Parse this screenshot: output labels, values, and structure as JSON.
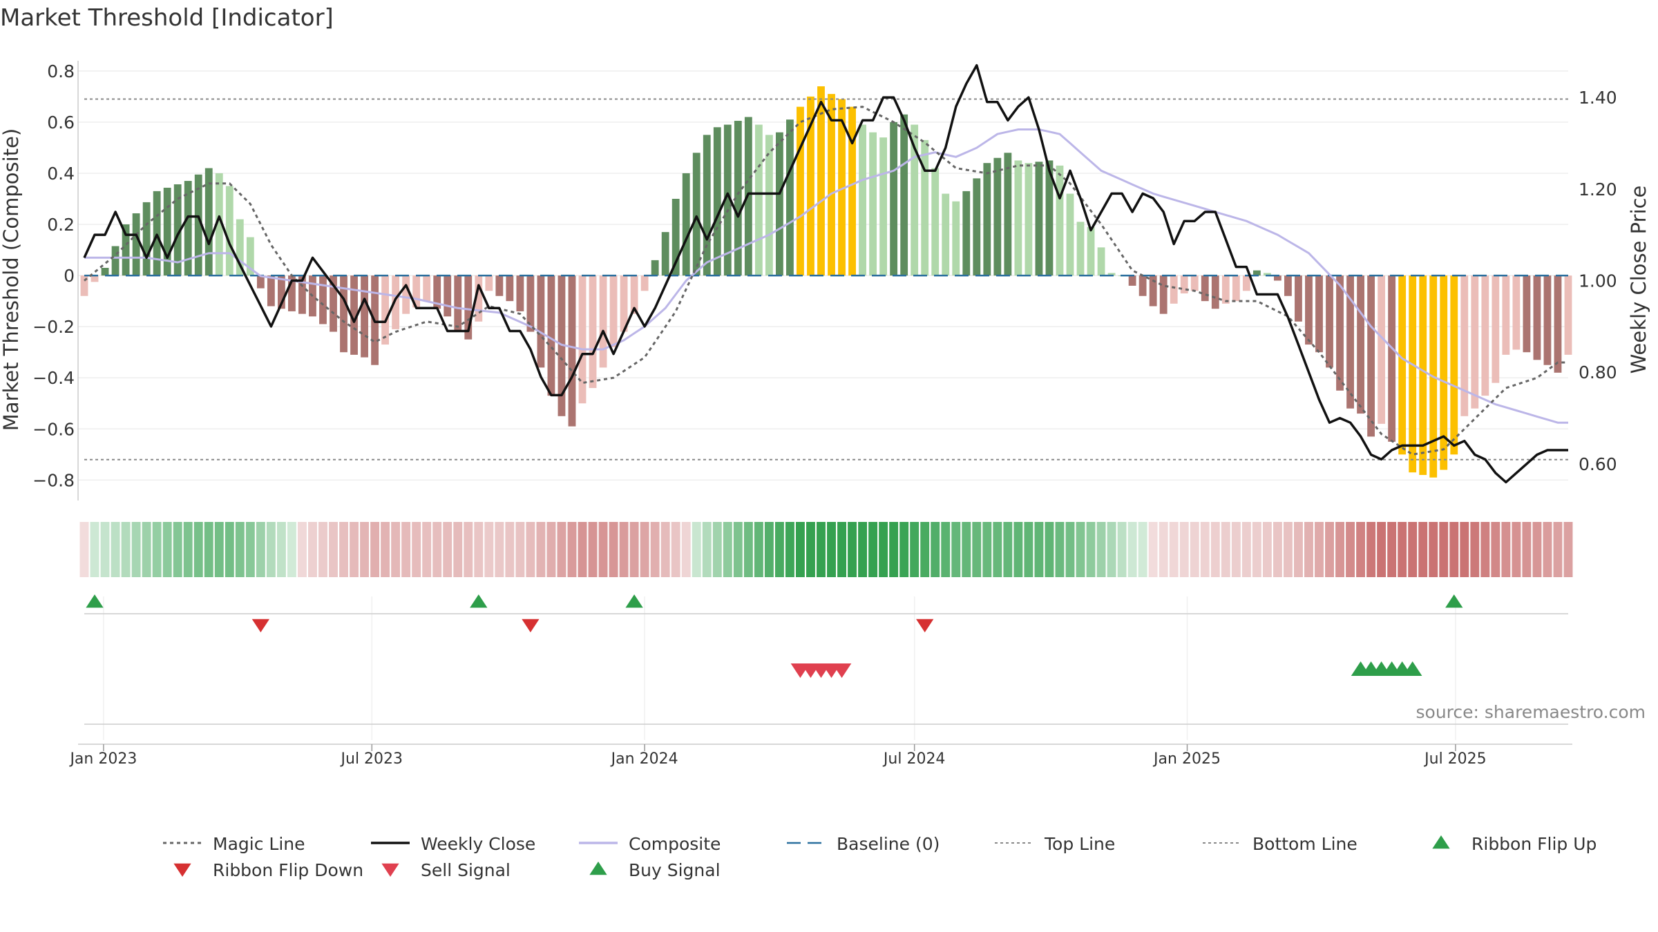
{
  "title": "Market Threshold [Indicator]",
  "source": "source: sharemaestro.com",
  "chart_data": {
    "type": "bar",
    "weeks": 144,
    "x_start": "2022-12-19",
    "x_end": "2025-09-15",
    "x_ticks": [
      {
        "date": "2023-01-01",
        "label": "Jan 2023"
      },
      {
        "date": "2023-07-01",
        "label": "Jul 2023"
      },
      {
        "date": "2024-01-01",
        "label": "Jan 2024"
      },
      {
        "date": "2024-07-01",
        "label": "Jul 2024"
      },
      {
        "date": "2025-01-01",
        "label": "Jan 2025"
      },
      {
        "date": "2025-07-01",
        "label": "Jul 2025"
      }
    ],
    "left_axis": {
      "label": "Market Threshold (Composite)",
      "ylim": [
        -0.88,
        0.84
      ],
      "ticks": [
        0.8,
        0.6,
        0.4,
        0.2,
        0,
        -0.2,
        -0.4,
        -0.6,
        -0.8
      ],
      "tick_labels": [
        "0.8",
        "0.6",
        "0.4",
        "0.2",
        "0",
        "−0.2",
        "−0.4",
        "−0.6",
        "−0.8"
      ]
    },
    "right_axis": {
      "label": "Weekly Close Price",
      "ylim": [
        0.52,
        1.48
      ],
      "ticks": [
        1.4,
        1.2,
        1.0,
        0.8,
        0.6
      ],
      "tick_labels": [
        "1.40",
        "1.20",
        "1.00",
        "0.80",
        "0.60"
      ]
    },
    "top_line": 0.69,
    "bottom_line": -0.72,
    "legend": [
      {
        "name": "Magic Line",
        "symbol": "dotted",
        "color": "#666666"
      },
      {
        "name": "Weekly Close",
        "symbol": "solid",
        "color": "#111111"
      },
      {
        "name": "Composite",
        "symbol": "solid",
        "color": "#bcb6e8"
      },
      {
        "name": "Baseline (0)",
        "symbol": "dashed",
        "color": "#2a6f9e"
      },
      {
        "name": "Top Line",
        "symbol": "dotted-light",
        "color": "#888888"
      },
      {
        "name": "Bottom Line",
        "symbol": "dotted-light",
        "color": "#888888"
      },
      {
        "name": "Ribbon Flip Up",
        "symbol": "tri-up",
        "color": "#2e9e4a"
      },
      {
        "name": "Ribbon Flip Down",
        "symbol": "tri-down",
        "color": "#d63031"
      },
      {
        "name": "Sell Signal",
        "symbol": "tri-down",
        "color": "#e0404f"
      },
      {
        "name": "Buy Signal",
        "symbol": "tri-up",
        "color": "#2e9e4a"
      }
    ],
    "colors": {
      "pos_dark": "#5e8d5e",
      "pos_light": "#b0d8aa",
      "neg_dark": "#ab7470",
      "neg_light": "#ebbdb8",
      "extreme": "#fcc000"
    },
    "composite_keyframes": [
      [
        0,
        -0.08
      ],
      [
        2,
        0.03
      ],
      [
        4,
        0.2
      ],
      [
        7,
        0.33
      ],
      [
        10,
        0.37
      ],
      [
        12,
        0.42
      ],
      [
        13,
        0.4
      ],
      [
        14,
        0.35
      ],
      [
        15,
        0.22
      ],
      [
        16,
        0.15
      ],
      [
        17,
        -0.05
      ],
      [
        18,
        -0.12
      ],
      [
        20,
        -0.14
      ],
      [
        22,
        -0.16
      ],
      [
        24,
        -0.22
      ],
      [
        25,
        -0.3
      ],
      [
        27,
        -0.32
      ],
      [
        28,
        -0.35
      ],
      [
        29,
        -0.27
      ],
      [
        31,
        -0.15
      ],
      [
        33,
        -0.1
      ],
      [
        35,
        -0.16
      ],
      [
        36,
        -0.22
      ],
      [
        37,
        -0.25
      ],
      [
        38,
        -0.18
      ],
      [
        39,
        -0.06
      ],
      [
        40,
        -0.08
      ],
      [
        41,
        -0.1
      ],
      [
        42,
        -0.14
      ],
      [
        43,
        -0.22
      ],
      [
        44,
        -0.36
      ],
      [
        45,
        -0.47
      ],
      [
        46,
        -0.55
      ],
      [
        47,
        -0.59
      ],
      [
        48,
        -0.5
      ],
      [
        49,
        -0.44
      ],
      [
        50,
        -0.36
      ],
      [
        51,
        -0.28
      ],
      [
        52,
        -0.22
      ],
      [
        53,
        -0.15
      ],
      [
        54,
        -0.06
      ],
      [
        55,
        0.06
      ],
      [
        56,
        0.17
      ],
      [
        57,
        0.3
      ],
      [
        58,
        0.4
      ],
      [
        59,
        0.48
      ],
      [
        60,
        0.55
      ],
      [
        61,
        0.58
      ],
      [
        62,
        0.59
      ],
      [
        64,
        0.62
      ],
      [
        65,
        0.59
      ],
      [
        66,
        0.55
      ],
      [
        67,
        0.56
      ],
      [
        68,
        0.61
      ],
      [
        69,
        0.66
      ],
      [
        70,
        0.7
      ],
      [
        71,
        0.74
      ],
      [
        72,
        0.71
      ],
      [
        73,
        0.69
      ],
      [
        74,
        0.66
      ],
      [
        75,
        0.59
      ],
      [
        76,
        0.56
      ],
      [
        77,
        0.54
      ],
      [
        78,
        0.6
      ],
      [
        79,
        0.63
      ],
      [
        80,
        0.59
      ],
      [
        81,
        0.53
      ],
      [
        82,
        0.42
      ],
      [
        83,
        0.32
      ],
      [
        84,
        0.29
      ],
      [
        85,
        0.33
      ],
      [
        86,
        0.38
      ],
      [
        87,
        0.44
      ],
      [
        89,
        0.48
      ],
      [
        90,
        0.45
      ],
      [
        91,
        0.44
      ],
      [
        93,
        0.45
      ],
      [
        94,
        0.43
      ],
      [
        95,
        0.32
      ],
      [
        96,
        0.21
      ],
      [
        97,
        0.19
      ],
      [
        98,
        0.11
      ],
      [
        99,
        0.01
      ],
      [
        100,
        0
      ],
      [
        101,
        -0.04
      ],
      [
        102,
        -0.08
      ],
      [
        103,
        -0.12
      ],
      [
        104,
        -0.15
      ],
      [
        105,
        -0.11
      ],
      [
        106,
        -0.07
      ],
      [
        107,
        -0.06
      ],
      [
        108,
        -0.1
      ],
      [
        109,
        -0.13
      ],
      [
        110,
        -0.11
      ],
      [
        111,
        -0.1
      ],
      [
        112,
        -0.06
      ],
      [
        113,
        0.02
      ],
      [
        114,
        0.01
      ],
      [
        115,
        -0.02
      ],
      [
        116,
        -0.08
      ],
      [
        117,
        -0.18
      ],
      [
        118,
        -0.27
      ],
      [
        119,
        -0.3
      ],
      [
        120,
        -0.36
      ],
      [
        121,
        -0.45
      ],
      [
        122,
        -0.52
      ],
      [
        123,
        -0.54
      ],
      [
        124,
        -0.63
      ],
      [
        125,
        -0.58
      ],
      [
        126,
        -0.65
      ],
      [
        127,
        -0.7
      ],
      [
        128,
        -0.77
      ],
      [
        129,
        -0.78
      ],
      [
        130,
        -0.79
      ],
      [
        131,
        -0.76
      ],
      [
        132,
        -0.7
      ],
      [
        133,
        -0.55
      ],
      [
        134,
        -0.52
      ],
      [
        135,
        -0.47
      ],
      [
        136,
        -0.42
      ],
      [
        137,
        -0.31
      ],
      [
        138,
        -0.29
      ],
      [
        139,
        -0.3
      ],
      [
        140,
        -0.33
      ],
      [
        141,
        -0.35
      ],
      [
        142,
        -0.38
      ],
      [
        143,
        -0.31
      ]
    ],
    "close_keyframes": [
      [
        0,
        1.05
      ],
      [
        1,
        1.1
      ],
      [
        2,
        1.1
      ],
      [
        3,
        1.15
      ],
      [
        4,
        1.1
      ],
      [
        5,
        1.1
      ],
      [
        6,
        1.05
      ],
      [
        7,
        1.1
      ],
      [
        8,
        1.05
      ],
      [
        9,
        1.1
      ],
      [
        10,
        1.14
      ],
      [
        11,
        1.14
      ],
      [
        12,
        1.08
      ],
      [
        13,
        1.14
      ],
      [
        14,
        1.08
      ],
      [
        16,
        0.99
      ],
      [
        18,
        0.9
      ],
      [
        20,
        1.0
      ],
      [
        21,
        1.0
      ],
      [
        22,
        1.05
      ],
      [
        24,
        0.99
      ],
      [
        25,
        0.96
      ],
      [
        26,
        0.91
      ],
      [
        27,
        0.96
      ],
      [
        28,
        0.91
      ],
      [
        29,
        0.91
      ],
      [
        30,
        0.96
      ],
      [
        31,
        0.99
      ],
      [
        32,
        0.94
      ],
      [
        33,
        0.94
      ],
      [
        34,
        0.94
      ],
      [
        35,
        0.89
      ],
      [
        36,
        0.89
      ],
      [
        37,
        0.89
      ],
      [
        38,
        0.99
      ],
      [
        39,
        0.94
      ],
      [
        40,
        0.94
      ],
      [
        41,
        0.89
      ],
      [
        42,
        0.89
      ],
      [
        43,
        0.85
      ],
      [
        44,
        0.79
      ],
      [
        45,
        0.75
      ],
      [
        46,
        0.75
      ],
      [
        47,
        0.79
      ],
      [
        48,
        0.84
      ],
      [
        49,
        0.84
      ],
      [
        50,
        0.89
      ],
      [
        51,
        0.84
      ],
      [
        52,
        0.89
      ],
      [
        53,
        0.94
      ],
      [
        54,
        0.9
      ],
      [
        55,
        0.94
      ],
      [
        56,
        0.99
      ],
      [
        57,
        1.04
      ],
      [
        58,
        1.09
      ],
      [
        59,
        1.14
      ],
      [
        60,
        1.09
      ],
      [
        61,
        1.14
      ],
      [
        62,
        1.19
      ],
      [
        63,
        1.14
      ],
      [
        64,
        1.19
      ],
      [
        65,
        1.19
      ],
      [
        66,
        1.19
      ],
      [
        67,
        1.19
      ],
      [
        68,
        1.24
      ],
      [
        69,
        1.29
      ],
      [
        70,
        1.34
      ],
      [
        71,
        1.39
      ],
      [
        72,
        1.35
      ],
      [
        73,
        1.35
      ],
      [
        74,
        1.3
      ],
      [
        75,
        1.35
      ],
      [
        76,
        1.35
      ],
      [
        77,
        1.4
      ],
      [
        78,
        1.4
      ],
      [
        79,
        1.35
      ],
      [
        80,
        1.29
      ],
      [
        81,
        1.24
      ],
      [
        82,
        1.24
      ],
      [
        83,
        1.29
      ],
      [
        84,
        1.38
      ],
      [
        85,
        1.43
      ],
      [
        86,
        1.47
      ],
      [
        87,
        1.39
      ],
      [
        88,
        1.39
      ],
      [
        89,
        1.35
      ],
      [
        90,
        1.38
      ],
      [
        91,
        1.4
      ],
      [
        92,
        1.33
      ],
      [
        93,
        1.24
      ],
      [
        94,
        1.18
      ],
      [
        95,
        1.24
      ],
      [
        96,
        1.18
      ],
      [
        97,
        1.11
      ],
      [
        98,
        1.15
      ],
      [
        99,
        1.19
      ],
      [
        100,
        1.19
      ],
      [
        101,
        1.15
      ],
      [
        102,
        1.19
      ],
      [
        103,
        1.18
      ],
      [
        104,
        1.15
      ],
      [
        105,
        1.08
      ],
      [
        106,
        1.13
      ],
      [
        107,
        1.13
      ],
      [
        108,
        1.15
      ],
      [
        109,
        1.15
      ],
      [
        110,
        1.09
      ],
      [
        111,
        1.03
      ],
      [
        112,
        1.03
      ],
      [
        113,
        0.97
      ],
      [
        114,
        0.97
      ],
      [
        115,
        0.97
      ],
      [
        116,
        0.92
      ],
      [
        117,
        0.86
      ],
      [
        118,
        0.8
      ],
      [
        119,
        0.74
      ],
      [
        120,
        0.69
      ],
      [
        121,
        0.7
      ],
      [
        122,
        0.69
      ],
      [
        123,
        0.66
      ],
      [
        124,
        0.62
      ],
      [
        125,
        0.61
      ],
      [
        126,
        0.63
      ],
      [
        127,
        0.64
      ],
      [
        128,
        0.64
      ],
      [
        129,
        0.64
      ],
      [
        130,
        0.65
      ],
      [
        131,
        0.66
      ],
      [
        132,
        0.64
      ],
      [
        133,
        0.65
      ],
      [
        134,
        0.62
      ],
      [
        135,
        0.61
      ],
      [
        136,
        0.58
      ],
      [
        137,
        0.56
      ],
      [
        138,
        0.58
      ],
      [
        139,
        0.6
      ],
      [
        140,
        0.62
      ],
      [
        141,
        0.63
      ],
      [
        142,
        0.63
      ],
      [
        143,
        0.63
      ]
    ],
    "composite_line_keyframes": [
      [
        0,
        1.05
      ],
      [
        3,
        1.05
      ],
      [
        6,
        1.05
      ],
      [
        9,
        1.04
      ],
      [
        12,
        1.06
      ],
      [
        14,
        1.06
      ],
      [
        17,
        1.01
      ],
      [
        20,
        1.0
      ],
      [
        23,
        0.99
      ],
      [
        26,
        0.98
      ],
      [
        29,
        0.97
      ],
      [
        32,
        0.96
      ],
      [
        36,
        0.94
      ],
      [
        40,
        0.93
      ],
      [
        43,
        0.9
      ],
      [
        46,
        0.86
      ],
      [
        48,
        0.85
      ],
      [
        50,
        0.85
      ],
      [
        52,
        0.87
      ],
      [
        54,
        0.9
      ],
      [
        56,
        0.94
      ],
      [
        58,
        1.0
      ],
      [
        60,
        1.04
      ],
      [
        63,
        1.07
      ],
      [
        66,
        1.1
      ],
      [
        69,
        1.14
      ],
      [
        72,
        1.19
      ],
      [
        75,
        1.22
      ],
      [
        78,
        1.24
      ],
      [
        80,
        1.27
      ],
      [
        82,
        1.28
      ],
      [
        84,
        1.27
      ],
      [
        86,
        1.29
      ],
      [
        88,
        1.32
      ],
      [
        90,
        1.33
      ],
      [
        92,
        1.33
      ],
      [
        94,
        1.32
      ],
      [
        96,
        1.28
      ],
      [
        98,
        1.24
      ],
      [
        100,
        1.22
      ],
      [
        103,
        1.19
      ],
      [
        106,
        1.17
      ],
      [
        109,
        1.15
      ],
      [
        112,
        1.13
      ],
      [
        115,
        1.1
      ],
      [
        118,
        1.06
      ],
      [
        121,
        0.99
      ],
      [
        124,
        0.9
      ],
      [
        127,
        0.83
      ],
      [
        130,
        0.79
      ],
      [
        133,
        0.76
      ],
      [
        136,
        0.73
      ],
      [
        139,
        0.71
      ],
      [
        142,
        0.69
      ],
      [
        143,
        0.69
      ]
    ],
    "magic_line_keyframes": [
      [
        0,
        -0.02
      ],
      [
        3,
        0.08
      ],
      [
        6,
        0.2
      ],
      [
        9,
        0.3
      ],
      [
        12,
        0.36
      ],
      [
        14,
        0.36
      ],
      [
        16,
        0.28
      ],
      [
        18,
        0.12
      ],
      [
        20,
        0.0
      ],
      [
        22,
        -0.08
      ],
      [
        25,
        -0.18
      ],
      [
        28,
        -0.26
      ],
      [
        30,
        -0.22
      ],
      [
        33,
        -0.18
      ],
      [
        36,
        -0.2
      ],
      [
        39,
        -0.12
      ],
      [
        42,
        -0.15
      ],
      [
        45,
        -0.28
      ],
      [
        48,
        -0.42
      ],
      [
        51,
        -0.4
      ],
      [
        54,
        -0.32
      ],
      [
        57,
        -0.14
      ],
      [
        60,
        0.12
      ],
      [
        63,
        0.32
      ],
      [
        66,
        0.48
      ],
      [
        69,
        0.6
      ],
      [
        72,
        0.65
      ],
      [
        75,
        0.66
      ],
      [
        78,
        0.6
      ],
      [
        81,
        0.52
      ],
      [
        84,
        0.42
      ],
      [
        87,
        0.4
      ],
      [
        90,
        0.43
      ],
      [
        93,
        0.43
      ],
      [
        95,
        0.36
      ],
      [
        98,
        0.2
      ],
      [
        101,
        0.02
      ],
      [
        104,
        -0.04
      ],
      [
        107,
        -0.06
      ],
      [
        110,
        -0.1
      ],
      [
        113,
        -0.1
      ],
      [
        116,
        -0.16
      ],
      [
        119,
        -0.3
      ],
      [
        122,
        -0.46
      ],
      [
        125,
        -0.62
      ],
      [
        128,
        -0.7
      ],
      [
        131,
        -0.68
      ],
      [
        134,
        -0.56
      ],
      [
        137,
        -0.44
      ],
      [
        140,
        -0.4
      ],
      [
        142,
        -0.34
      ],
      [
        143,
        -0.34
      ]
    ],
    "ribbon_flip_up": [
      1,
      38,
      53,
      132
    ],
    "ribbon_flip_down": [
      17,
      43,
      81
    ],
    "sell_signal": [
      69,
      70,
      71,
      72,
      73
    ],
    "buy_signal": [
      123,
      124,
      125,
      126,
      127,
      128
    ]
  }
}
